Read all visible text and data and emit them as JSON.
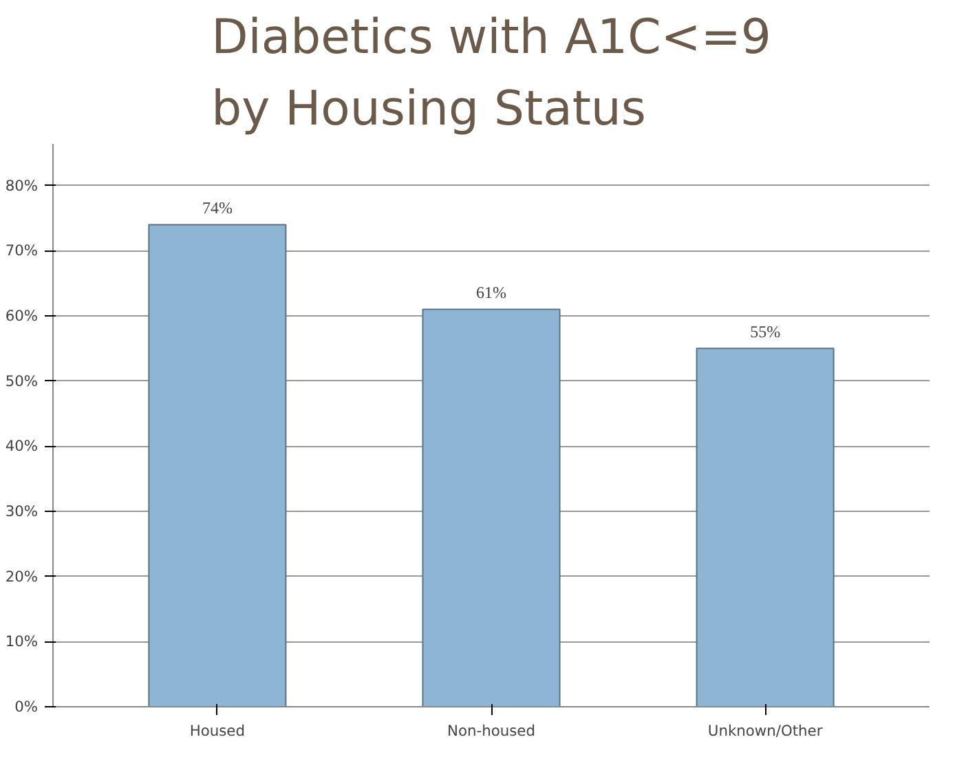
{
  "chart_data": {
    "type": "bar",
    "title": "Diabetics with A1C<=9\nby Housing Status",
    "categories": [
      "Housed",
      "Non-housed",
      "Unknown/Other"
    ],
    "values": [
      74,
      61,
      55
    ],
    "value_labels": [
      "74%",
      "61%",
      "55%"
    ],
    "color": "#8fb5d5",
    "ylim": [
      0,
      80
    ],
    "yticks": [
      {
        "value": 0,
        "label": "0%"
      },
      {
        "value": 10,
        "label": "10%"
      },
      {
        "value": 20,
        "label": "20%"
      },
      {
        "value": 30,
        "label": "30%"
      },
      {
        "value": 40,
        "label": "40%"
      },
      {
        "value": 50,
        "label": "50%"
      },
      {
        "value": 60,
        "label": "60%"
      },
      {
        "value": 70,
        "label": "70%"
      },
      {
        "value": 80,
        "label": "80%"
      }
    ],
    "grid": "y"
  }
}
